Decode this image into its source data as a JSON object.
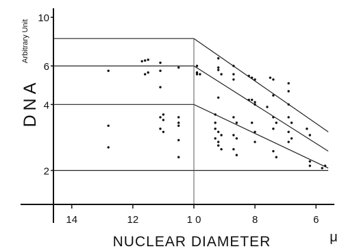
{
  "chart_data": {
    "type": "scatter",
    "title": "",
    "xlabel": "NUCLEAR DIAMETER",
    "x_unit": "μ",
    "ylabel": "DNA",
    "y_unit": "Arbitrary Unit",
    "x_reversed": true,
    "y_scale": "log",
    "xlim": [
      14.6,
      5.4
    ],
    "ylim": [
      1.4,
      11
    ],
    "x_ticks": [
      {
        "value": 14,
        "label": "14"
      },
      {
        "value": 12,
        "label": "12"
      },
      {
        "value": 10,
        "label": "1 0"
      },
      {
        "value": 8,
        "label": "8"
      },
      {
        "value": 6,
        "label": "6"
      }
    ],
    "y_ticks": [
      {
        "value": 10,
        "label": "10"
      },
      {
        "value": 6,
        "label": "6"
      },
      {
        "value": 4,
        "label": "4"
      },
      {
        "value": 2,
        "label": "2"
      }
    ],
    "grid": false,
    "reference_lines": [
      {
        "points": [
          [
            14.6,
            8.0
          ],
          [
            10,
            8.0
          ],
          [
            5.6,
            3.0
          ]
        ]
      },
      {
        "points": [
          [
            14.6,
            6.0
          ],
          [
            10,
            6.0
          ],
          [
            5.6,
            2.45
          ]
        ]
      },
      {
        "points": [
          [
            14.6,
            4.0
          ],
          [
            10,
            4.0
          ],
          [
            5.6,
            2.05
          ]
        ]
      },
      {
        "points": [
          [
            14.6,
            2.0
          ],
          [
            5.6,
            2.0
          ]
        ]
      }
    ],
    "vertical_line": {
      "x": 10
    },
    "points": [
      [
        12.8,
        5.7
      ],
      [
        12.8,
        3.2
      ],
      [
        12.8,
        2.55
      ],
      [
        11.7,
        6.3
      ],
      [
        11.6,
        6.35
      ],
      [
        11.6,
        5.5
      ],
      [
        11.5,
        5.6
      ],
      [
        11.5,
        6.4
      ],
      [
        11.1,
        6.2
      ],
      [
        11.1,
        5.7
      ],
      [
        11.1,
        4.8
      ],
      [
        11.1,
        3.5
      ],
      [
        11.0,
        3.4
      ],
      [
        11.0,
        3.6
      ],
      [
        11.1,
        3.1
      ],
      [
        11.0,
        3.0
      ],
      [
        10.5,
        5.9
      ],
      [
        10.5,
        3.5
      ],
      [
        10.5,
        3.3
      ],
      [
        10.5,
        3.2
      ],
      [
        10.5,
        2.75
      ],
      [
        10.5,
        2.3
      ],
      [
        9.9,
        6.0
      ],
      [
        9.9,
        5.6
      ],
      [
        9.8,
        5.5
      ],
      [
        9.9,
        5.5
      ],
      [
        9.2,
        6.5
      ],
      [
        9.2,
        5.9
      ],
      [
        9.2,
        5.75
      ],
      [
        9.1,
        5.5
      ],
      [
        9.2,
        4.3
      ],
      [
        9.3,
        3.6
      ],
      [
        9.3,
        3.3
      ],
      [
        9.3,
        3.1
      ],
      [
        9.2,
        3.0
      ],
      [
        9.1,
        2.9
      ],
      [
        9.3,
        2.8
      ],
      [
        9.2,
        2.7
      ],
      [
        9.2,
        2.6
      ],
      [
        9.1,
        2.5
      ],
      [
        8.7,
        6.0
      ],
      [
        8.7,
        5.5
      ],
      [
        8.7,
        5.2
      ],
      [
        8.7,
        3.5
      ],
      [
        8.6,
        3.3
      ],
      [
        8.7,
        2.9
      ],
      [
        8.6,
        2.8
      ],
      [
        8.7,
        2.5
      ],
      [
        8.6,
        2.35
      ],
      [
        8.2,
        5.4
      ],
      [
        8.1,
        5.3
      ],
      [
        8.0,
        5.2
      ],
      [
        8.2,
        4.2
      ],
      [
        8.1,
        4.2
      ],
      [
        8.0,
        4.1
      ],
      [
        8.0,
        4.0
      ],
      [
        8.1,
        3.3
      ],
      [
        8.0,
        3.0
      ],
      [
        8.0,
        2.7
      ],
      [
        7.6,
        3.9
      ],
      [
        7.5,
        5.3
      ],
      [
        7.4,
        5.2
      ],
      [
        7.4,
        4.4
      ],
      [
        7.4,
        3.5
      ],
      [
        7.3,
        3.3
      ],
      [
        7.4,
        3.1
      ],
      [
        7.4,
        2.45
      ],
      [
        7.3,
        2.3
      ],
      [
        6.9,
        5.0
      ],
      [
        6.9,
        4.6
      ],
      [
        6.9,
        4.0
      ],
      [
        6.9,
        3.5
      ],
      [
        6.8,
        3.3
      ],
      [
        6.9,
        3.0
      ],
      [
        6.8,
        2.8
      ],
      [
        6.9,
        2.7
      ],
      [
        6.3,
        3.1
      ],
      [
        6.2,
        2.9
      ],
      [
        6.2,
        2.2
      ],
      [
        6.2,
        2.1
      ],
      [
        5.8,
        2.05
      ],
      [
        5.7,
        2.1
      ]
    ]
  }
}
